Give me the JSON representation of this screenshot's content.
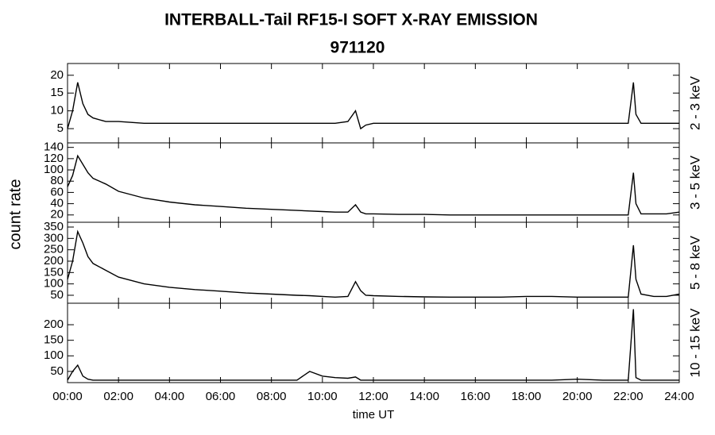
{
  "title": "INTERBALL-Tail RF15-I SOFT X-RAY EMISSION",
  "subtitle": "971120",
  "y_axis_label": "count rate",
  "x_axis_label": "time UT",
  "xlim": [
    0,
    24
  ],
  "xticks": [
    {
      "value": 0,
      "label": "00:00"
    },
    {
      "value": 2,
      "label": "02:00"
    },
    {
      "value": 4,
      "label": "04:00"
    },
    {
      "value": 6,
      "label": "06:00"
    },
    {
      "value": 8,
      "label": "08:00"
    },
    {
      "value": 10,
      "label": "10:00"
    },
    {
      "value": 12,
      "label": "12:00"
    },
    {
      "value": 14,
      "label": "14:00"
    },
    {
      "value": 16,
      "label": "16:00"
    },
    {
      "value": 18,
      "label": "18:00"
    },
    {
      "value": 20,
      "label": "20:00"
    },
    {
      "value": 22,
      "label": "22:00"
    },
    {
      "value": 24,
      "label": "24:00"
    }
  ],
  "chart_data": [
    {
      "type": "line",
      "panel_label": "2 - 3 keV",
      "color": "#000000",
      "ylim": [
        1,
        23.3
      ],
      "yticks": [
        5,
        10,
        15,
        20
      ],
      "x": [
        0,
        0.2,
        0.4,
        0.6,
        0.8,
        1,
        1.5,
        2,
        3,
        4,
        5,
        6,
        7,
        8,
        9,
        9.5,
        10,
        10.5,
        11,
        11.3,
        11.5,
        11.7,
        12,
        13,
        14,
        15,
        16,
        17,
        18,
        19,
        20,
        21,
        22,
        22.2,
        22.3,
        22.5,
        23,
        23.5,
        24
      ],
      "values": [
        5,
        10,
        18,
        12,
        9,
        8,
        7,
        7,
        6.5,
        6.5,
        6.5,
        6.5,
        6.5,
        6.5,
        6.5,
        6.5,
        6.5,
        6.5,
        7,
        10,
        5,
        6,
        6.5,
        6.5,
        6.5,
        6.5,
        6.5,
        6.5,
        6.5,
        6.5,
        6.5,
        6.5,
        6.5,
        18,
        9,
        6.5,
        6.5,
        6.5,
        6.5
      ]
    },
    {
      "type": "line",
      "panel_label": "3 - 5 keV",
      "color": "#000000",
      "ylim": [
        7,
        148
      ],
      "yticks": [
        20,
        40,
        60,
        80,
        100,
        120,
        140
      ],
      "x": [
        0,
        0.2,
        0.4,
        0.6,
        0.8,
        1,
        1.5,
        2,
        3,
        4,
        5,
        6,
        7,
        8,
        9,
        9.5,
        10,
        10.5,
        11,
        11.3,
        11.5,
        11.7,
        12,
        13,
        14,
        15,
        16,
        17,
        18,
        19,
        20,
        21,
        22,
        22.2,
        22.3,
        22.5,
        23,
        23.5,
        24
      ],
      "values": [
        70,
        90,
        125,
        110,
        95,
        85,
        75,
        62,
        50,
        43,
        38,
        35,
        32,
        30,
        28,
        27,
        26,
        25,
        25,
        38,
        25,
        22,
        22,
        21,
        21,
        20,
        20,
        20,
        20,
        20,
        20,
        20,
        20,
        95,
        40,
        22,
        22,
        22,
        25
      ]
    },
    {
      "type": "line",
      "panel_label": "5 - 8 keV",
      "color": "#000000",
      "ylim": [
        15,
        371
      ],
      "yticks": [
        50,
        100,
        150,
        200,
        250,
        300,
        350
      ],
      "x": [
        0,
        0.2,
        0.4,
        0.6,
        0.8,
        1,
        1.5,
        2,
        3,
        4,
        5,
        6,
        7,
        8,
        9,
        9.5,
        10,
        10.5,
        11,
        11.3,
        11.5,
        11.7,
        12,
        13,
        14,
        15,
        16,
        17,
        18,
        19,
        20,
        21,
        22,
        22.2,
        22.3,
        22.5,
        23,
        23.5,
        24
      ],
      "values": [
        120,
        200,
        330,
        280,
        220,
        190,
        160,
        130,
        100,
        85,
        75,
        68,
        60,
        55,
        50,
        48,
        45,
        42,
        45,
        110,
        70,
        50,
        48,
        45,
        43,
        42,
        42,
        42,
        45,
        45,
        42,
        42,
        42,
        270,
        120,
        55,
        45,
        45,
        55
      ]
    },
    {
      "type": "line",
      "panel_label": "10 - 15 keV",
      "color": "#000000",
      "ylim": [
        14,
        269
      ],
      "yticks": [
        50,
        100,
        150,
        200
      ],
      "x": [
        0,
        0.2,
        0.4,
        0.6,
        0.8,
        1,
        1.5,
        2,
        3,
        4,
        5,
        6,
        7,
        8,
        9,
        9.5,
        10,
        10.5,
        11,
        11.3,
        11.5,
        11.7,
        12,
        13,
        14,
        15,
        16,
        17,
        18,
        19,
        20,
        21,
        22,
        22.2,
        22.3,
        22.5,
        23,
        23.5,
        24
      ],
      "values": [
        22,
        50,
        70,
        35,
        25,
        22,
        22,
        22,
        22,
        22,
        22,
        22,
        22,
        22,
        22,
        50,
        35,
        30,
        28,
        32,
        22,
        22,
        22,
        22,
        22,
        22,
        22,
        22,
        22,
        22,
        25,
        22,
        22,
        250,
        30,
        22,
        22,
        22,
        22
      ]
    }
  ]
}
